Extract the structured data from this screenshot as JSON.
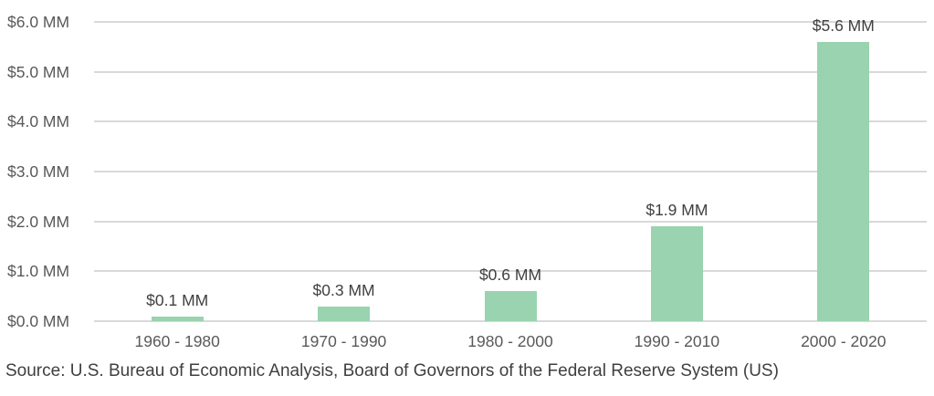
{
  "chart_data": {
    "type": "bar",
    "title": "",
    "categories": [
      "1960 - 1980",
      "1970 - 1990",
      "1980 - 2000",
      "1990 - 2010",
      "2000 - 2020"
    ],
    "values": [
      0.1,
      0.3,
      0.6,
      1.9,
      5.6
    ],
    "bar_labels": [
      "$0.1 MM",
      "$0.3 MM",
      "$0.6 MM",
      "$1.9 MM",
      "$5.6 MM"
    ],
    "y_tick_labels": [
      "$6.0 MM",
      "$5.0 MM",
      "$4.0 MM",
      "$3.0 MM",
      "$2.0 MM",
      "$1.0 MM",
      "$0.0 MM"
    ],
    "y_tick_values": [
      6.0,
      5.0,
      4.0,
      3.0,
      2.0,
      1.0,
      0.0
    ],
    "ylim": [
      0,
      6.0
    ],
    "xlabel": "",
    "ylabel": "",
    "grid": true,
    "legend": "none",
    "bar_color": "#99d3af",
    "gridline_color": "#d9d9d9",
    "axis_label_color": "#595959",
    "data_label_color": "#404040"
  },
  "source": {
    "text": "Source: U.S. Bureau of Economic Analysis, Board of Governors of the Federal Reserve System (US)"
  }
}
